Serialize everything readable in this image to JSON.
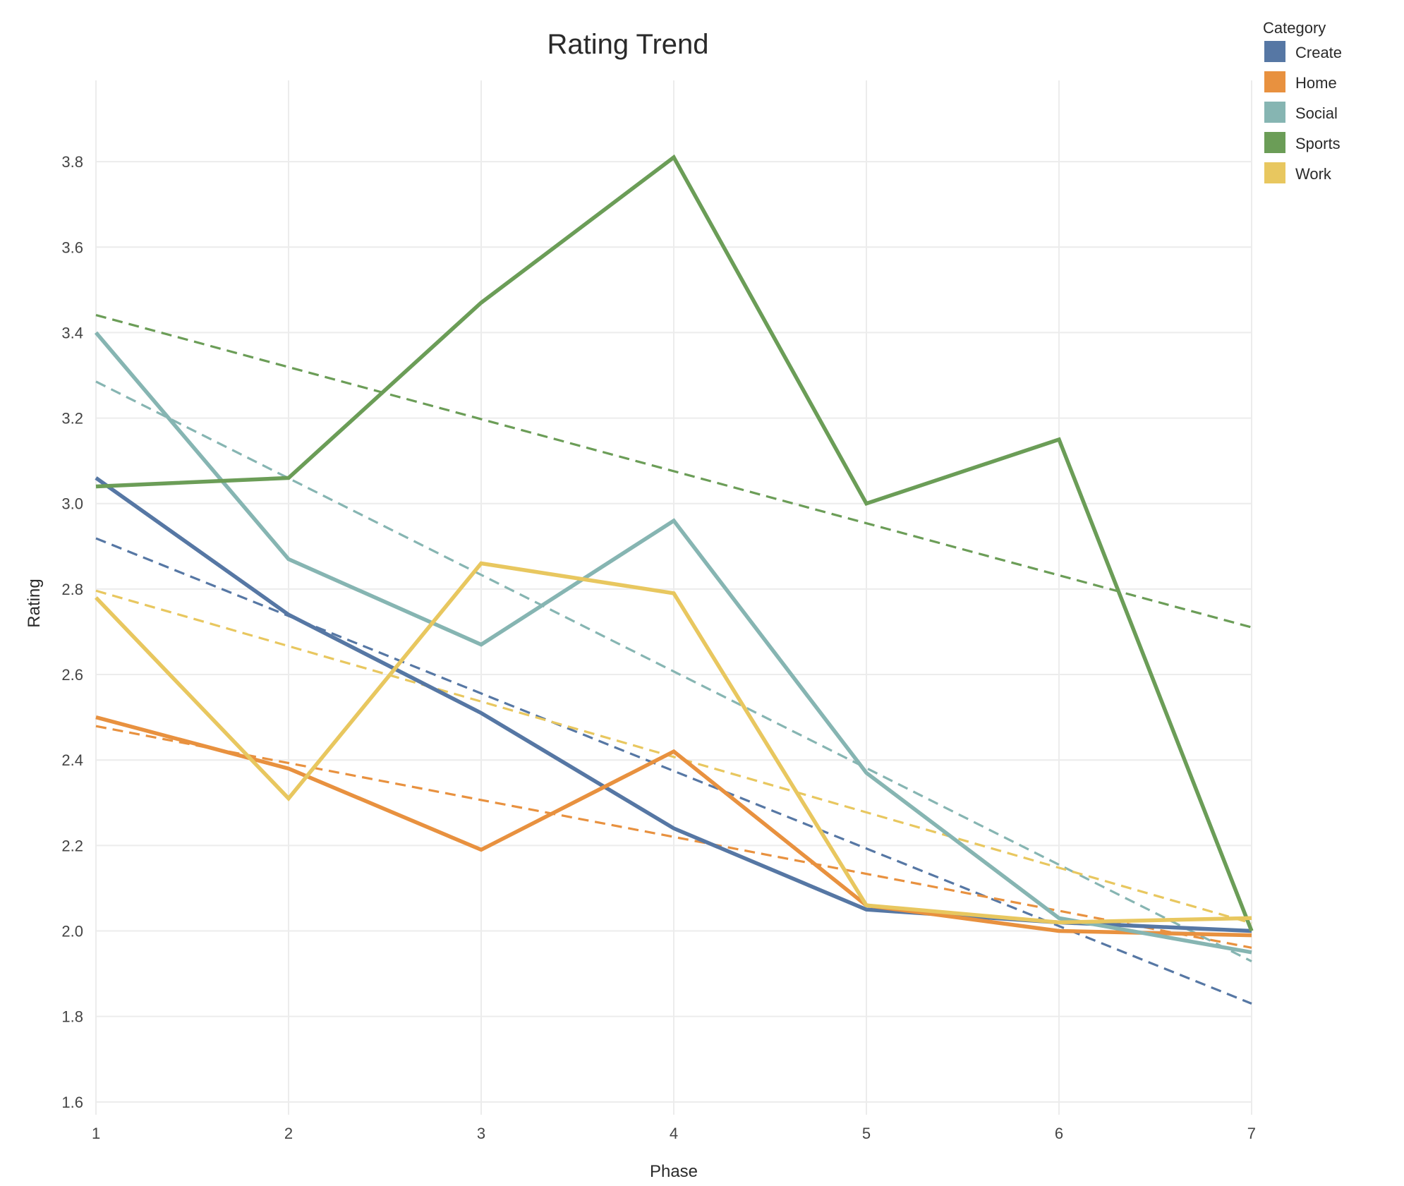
{
  "chart_data": {
    "type": "line",
    "title": "Rating Trend",
    "xlabel": "Phase",
    "ylabel": "Rating",
    "x": [
      1,
      2,
      3,
      4,
      5,
      6,
      7
    ],
    "xlim": [
      1,
      7
    ],
    "ylim": [
      1.57,
      3.99
    ],
    "yticks": [
      1.6,
      1.8,
      2.0,
      2.2,
      2.4,
      2.6,
      2.8,
      3.0,
      3.2,
      3.4,
      3.6,
      3.8
    ],
    "grid": true,
    "legend": {
      "title": "Category",
      "placement": "top-right"
    },
    "trendlines": {
      "style": "dashed",
      "method": "linear"
    },
    "series": [
      {
        "name": "Create",
        "color": "#5677a4",
        "values": [
          3.06,
          2.74,
          2.51,
          2.24,
          2.05,
          2.02,
          2.0
        ]
      },
      {
        "name": "Home",
        "color": "#e8913f",
        "values": [
          2.5,
          2.38,
          2.19,
          2.42,
          2.06,
          2.0,
          1.99
        ]
      },
      {
        "name": "Social",
        "color": "#86b5b2",
        "values": [
          3.4,
          2.87,
          2.67,
          2.96,
          2.37,
          2.03,
          1.95
        ]
      },
      {
        "name": "Sports",
        "color": "#6b9d57",
        "values": [
          3.04,
          3.06,
          3.47,
          3.81,
          3.0,
          3.15,
          2.0
        ]
      },
      {
        "name": "Work",
        "color": "#e8c75f",
        "values": [
          2.78,
          2.31,
          2.86,
          2.79,
          2.06,
          2.02,
          2.03
        ]
      }
    ]
  }
}
